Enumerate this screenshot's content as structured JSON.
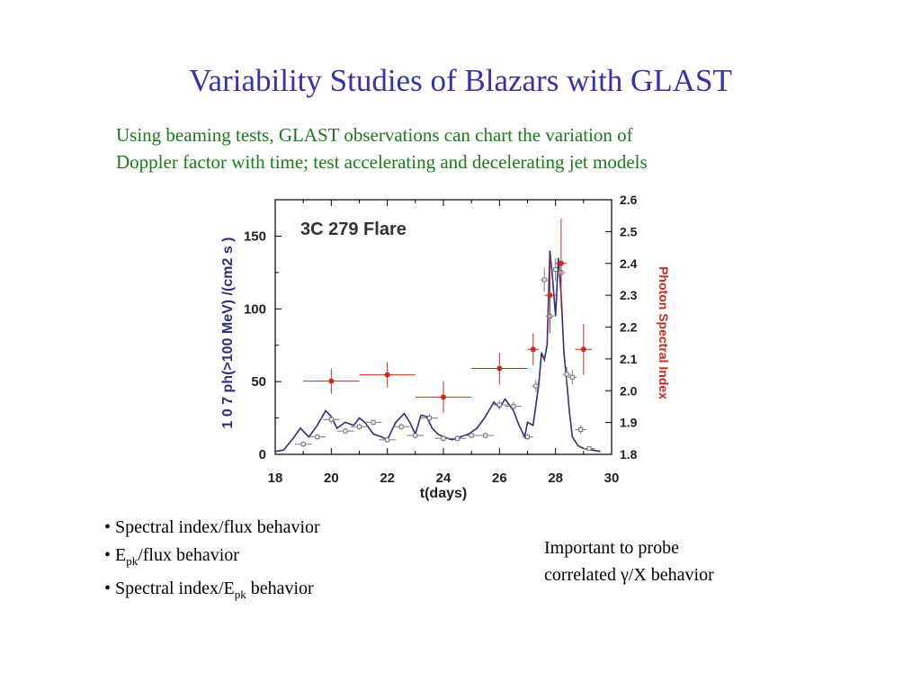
{
  "slide": {
    "title": "Variability Studies of Blazars with GLAST",
    "subtitle_line1": "Using beaming tests, GLAST observations can chart the variation of",
    "subtitle_line2": "Doppler factor with time; test accelerating and decelerating jet models",
    "bullets": [
      {
        "prefix": "• Spectral index/flux behavior",
        "sub": "",
        "suffix": ""
      },
      {
        "prefix": "• E",
        "sub": "pk",
        "suffix": "/flux behavior"
      },
      {
        "prefix": "• Spectral index/E",
        "sub": "pk",
        "suffix": " behavior"
      }
    ],
    "note_line1": "Important to probe",
    "note_line2": "correlated γ/X behavior"
  },
  "colors": {
    "title": "#3333aa",
    "subtitle": "#1a7a1a",
    "flux": "#2e2e7a",
    "index": "#cc2a1e",
    "flux_points": "#777777"
  },
  "chart_data": {
    "type": "line",
    "title": "3C  279  Flare",
    "xlabel": "t(days)",
    "ylabel_left": "1 0  7  ph(>100  MeV)  /(cm2 s )",
    "ylabel_right": "Photon  Spectral  Index",
    "xlim": [
      18,
      30
    ],
    "ylim_left": [
      0,
      175
    ],
    "ylim_right": [
      1.8,
      2.6
    ],
    "x_ticks": [
      "18",
      "20",
      "22",
      "24",
      "26",
      "28",
      "30"
    ],
    "y_ticks_left": [
      "0",
      "50",
      "100",
      "150"
    ],
    "y_ticks_right": [
      "1.8",
      "1.9",
      "2.0",
      "2.1",
      "2.2",
      "2.3",
      "2.4",
      "2.5",
      "2.6"
    ],
    "series": [
      {
        "kind": "flux_curve",
        "x": [
          18.0,
          18.3,
          18.6,
          18.9,
          19.2,
          19.5,
          19.8,
          20.0,
          20.2,
          20.5,
          20.8,
          21.0,
          21.2,
          21.5,
          21.8,
          22.0,
          22.3,
          22.6,
          22.8,
          23.0,
          23.2,
          23.4,
          23.6,
          23.8,
          24.0,
          24.3,
          24.6,
          24.9,
          25.2,
          25.5,
          25.8,
          26.0,
          26.2,
          26.5,
          26.7,
          26.9,
          27.0,
          27.2,
          27.4,
          27.5,
          27.6,
          27.7,
          27.8,
          27.9,
          28.0,
          28.1,
          28.2,
          28.3,
          28.4,
          28.5,
          28.6,
          28.8,
          29.0,
          29.3,
          29.6
        ],
        "y": [
          2,
          3,
          10,
          18,
          12,
          20,
          30,
          26,
          18,
          22,
          20,
          25,
          22,
          14,
          12,
          10,
          22,
          28,
          22,
          14,
          27,
          26,
          18,
          14,
          12,
          10,
          12,
          14,
          18,
          26,
          36,
          32,
          38,
          30,
          20,
          12,
          22,
          20,
          48,
          70,
          65,
          75,
          140,
          120,
          95,
          135,
          110,
          70,
          50,
          28,
          12,
          6,
          4,
          3,
          2
        ]
      },
      {
        "kind": "flux_points",
        "x": [
          19.0,
          19.5,
          20.0,
          20.5,
          21.0,
          21.5,
          22.0,
          22.5,
          23.0,
          23.5,
          24.0,
          24.5,
          25.0,
          25.5,
          26.0,
          26.5,
          27.0,
          27.3,
          27.6,
          27.8,
          28.0,
          28.2,
          28.4,
          28.6,
          28.9,
          29.2
        ],
        "y": [
          7,
          12,
          24,
          16,
          19,
          22,
          10,
          19,
          13,
          25,
          11,
          11,
          13,
          13,
          34,
          33,
          12,
          47,
          120,
          95,
          127,
          125,
          55,
          53,
          17,
          4
        ],
        "xerr": [
          0.3,
          0.3,
          0.3,
          0.3,
          0.3,
          0.3,
          0.3,
          0.3,
          0.3,
          0.3,
          0.3,
          0.3,
          0.3,
          0.3,
          0.3,
          0.3,
          0.2,
          0.15,
          0.15,
          0.15,
          0.15,
          0.15,
          0.15,
          0.15,
          0.2,
          0.2
        ],
        "yerr": [
          2,
          2,
          3,
          2,
          2,
          2,
          2,
          2,
          2,
          3,
          2,
          2,
          2,
          2,
          3,
          3,
          2,
          4,
          8,
          7,
          8,
          8,
          5,
          5,
          3,
          1
        ]
      },
      {
        "kind": "index_points",
        "x": [
          20.0,
          22.0,
          24.0,
          26.0,
          27.2,
          27.8,
          28.2,
          29.0
        ],
        "y": [
          2.03,
          2.05,
          1.98,
          2.07,
          2.13,
          2.3,
          2.4,
          2.13
        ],
        "xerr": [
          1.0,
          1.0,
          1.0,
          1.0,
          0.2,
          0.2,
          0.2,
          0.3
        ],
        "yerr": [
          0.04,
          0.04,
          0.05,
          0.05,
          0.05,
          0.12,
          0.14,
          0.08
        ]
      }
    ]
  }
}
